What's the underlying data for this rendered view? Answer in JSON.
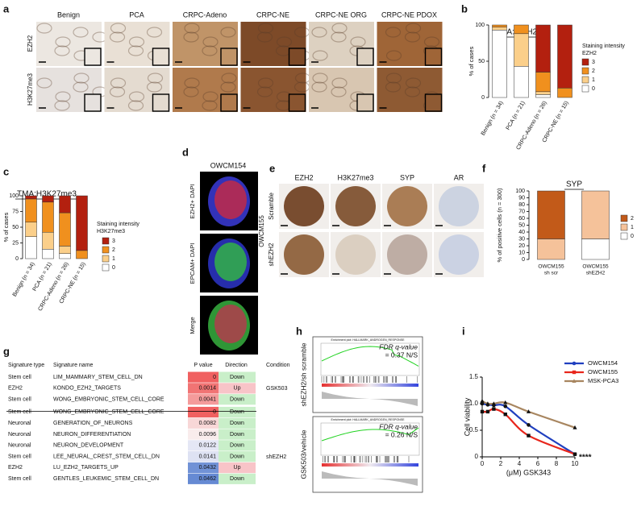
{
  "panel_labels": [
    "a",
    "b",
    "c",
    "d",
    "e",
    "f",
    "g",
    "h",
    "i"
  ],
  "panel_a": {
    "columns": [
      "Benign",
      "PCA",
      "CRPC-Adeno",
      "CRPC-NE",
      "CRPC-NE ORG",
      "CRPC-NE PDOX"
    ],
    "rows": [
      "EZH2",
      "H3K27me3"
    ]
  },
  "panel_d": {
    "title": "OWCM154",
    "rows": [
      "EZH2+ DAPI",
      "EPCAM+ DAPI",
      "Merge"
    ]
  },
  "panel_e": {
    "columns": [
      "EZH2",
      "H3K27me3",
      "SYP",
      "AR"
    ],
    "cell_line": "OWCM155",
    "rows": [
      "Scramble",
      "shEZH2"
    ]
  },
  "panel_g": {
    "header": [
      "Signature type",
      "Signature name",
      "P value",
      "Direction",
      "Condition"
    ],
    "rows": [
      [
        "Stem cell",
        "LIM_MAMMARY_STEM_CELL_DN",
        "0",
        "Down"
      ],
      [
        "EZH2",
        "KONDO_EZH2_TARGETS",
        "0.0014",
        "Up"
      ],
      [
        "Stem cell",
        "WONG_EMBRYONIC_STEM_CELL_CORE",
        "0.0041",
        "Down"
      ],
      [
        "Stem cell",
        "WONG_EMBRYONIC_STEM_CELL_CORE",
        "0",
        "Down"
      ],
      [
        "Neuronal",
        "GENERATION_OF_NEURONS",
        "0.0082",
        "Down"
      ],
      [
        "Neuronal",
        "NEURON_DIFFERENTIATION",
        "0.0096",
        "Down"
      ],
      [
        "Neuronal",
        "NEURON_DEVELOPMENT",
        "0.0122",
        "Down"
      ],
      [
        "Stem cell",
        "LEE_NEURAL_CREST_STEM_CELL_DN",
        "0.0141",
        "Down"
      ],
      [
        "EZH2",
        "LU_EZH2_TARGETS_UP",
        "0.0432",
        "Up"
      ],
      [
        "Stem cell",
        "GENTLES_LEUKEMIC_STEM_CELL_DN",
        "0.0462",
        "Down"
      ]
    ],
    "conditions": [
      "GSK503",
      "shEZH2"
    ]
  },
  "panel_h": {
    "plot_title": "Enrichment plot: HALLMARK_ANDROGEN_RESPONSE",
    "plots": [
      {
        "label": "shEZH2/sh scramble",
        "stat_name": "FDR q-value",
        "stat_value": "= 0.37 N/S"
      },
      {
        "label": "GSK503/vehicle",
        "stat_name": "FDR q-value",
        "stat_value": "= 0.26 N/S"
      }
    ]
  },
  "chart_data": [
    {
      "type": "bar",
      "stacked": true,
      "title": "TMA: EZH2",
      "y_label": "% of cases",
      "legend_title": [
        "Staining intensity",
        "EZH2"
      ],
      "categories": [
        "Benign (n = 34)",
        "PCA (n = 21)",
        "CRPC-Adeno (n = 26)",
        "CRPC-NE (n = 15)"
      ],
      "series": [
        {
          "name": "0",
          "color": "#ffffff",
          "values": [
            93,
            43,
            4,
            0
          ]
        },
        {
          "name": "1",
          "color": "#fbcf8a",
          "values": [
            4,
            45,
            4,
            0
          ]
        },
        {
          "name": "2",
          "color": "#f0901e",
          "values": [
            3,
            12,
            27,
            13
          ]
        },
        {
          "name": "3",
          "color": "#b3200f",
          "values": [
            0,
            0,
            65,
            87
          ]
        }
      ],
      "ylim": [
        0,
        100
      ],
      "yticks": [
        0,
        50,
        100
      ]
    },
    {
      "type": "bar",
      "stacked": true,
      "title": "TMA:H3K27me3",
      "y_label": "% of cases",
      "legend_title": [
        "Staining intensity",
        "H3K27me3"
      ],
      "categories": [
        "Benign (n = 34)",
        "PCA (n = 21)",
        "CRPC-Adeno (n = 26)",
        "CRPC-NE (n = 15)"
      ],
      "series": [
        {
          "name": "0",
          "color": "#ffffff",
          "values": [
            35,
            15,
            8,
            0
          ]
        },
        {
          "name": "1",
          "color": "#fbcf8a",
          "values": [
            23,
            27,
            12,
            0
          ]
        },
        {
          "name": "2",
          "color": "#f0901e",
          "values": [
            37,
            48,
            53,
            13
          ]
        },
        {
          "name": "3",
          "color": "#b3200f",
          "values": [
            5,
            10,
            27,
            87
          ]
        }
      ],
      "ylim": [
        0,
        100
      ],
      "yticks": [
        0,
        25,
        50,
        75,
        100
      ]
    },
    {
      "type": "bar",
      "stacked": true,
      "title": "SYP",
      "y_label": "% of positive cells (n = 300)",
      "categories": [
        [
          "OWCM155",
          "sh scr"
        ],
        [
          "OWCM155",
          "shEZH2"
        ]
      ],
      "series": [
        {
          "name": "0",
          "color": "#ffffff",
          "values": [
            0,
            30
          ]
        },
        {
          "name": "1",
          "color": "#f5c29a",
          "values": [
            30,
            70
          ]
        },
        {
          "name": "2",
          "color": "#c25a19",
          "values": [
            70,
            0
          ]
        }
      ],
      "ylim": [
        0,
        100
      ],
      "yticks": [
        0,
        10,
        20,
        30,
        40,
        50,
        60,
        70,
        80,
        90,
        100
      ]
    },
    {
      "type": "line",
      "x_label": "(μM) GSK343",
      "y_label": "Cell viability",
      "annotation": "****",
      "x": [
        0,
        0.6,
        1.25,
        2.5,
        5,
        10
      ],
      "series": [
        {
          "name": "OWCM154",
          "color": "#1f3fbf",
          "values": [
            1.0,
            0.98,
            0.97,
            0.95,
            0.6,
            0.05
          ]
        },
        {
          "name": "OWCM155",
          "color": "#e8261c",
          "values": [
            0.85,
            0.85,
            0.9,
            0.8,
            0.4,
            0.05
          ]
        },
        {
          "name": "MSK-PCA3",
          "color": "#a88660",
          "values": [
            1.05,
            1.0,
            1.0,
            1.02,
            0.85,
            0.55
          ]
        }
      ],
      "xlim": [
        0,
        10
      ],
      "xticks": [
        0,
        2,
        4,
        6,
        8,
        10
      ],
      "ylim": [
        0,
        1.5
      ],
      "yticks": [
        0,
        0.5,
        {
          "value": 1,
          "label": "1.0"
        },
        1.5
      ]
    }
  ]
}
